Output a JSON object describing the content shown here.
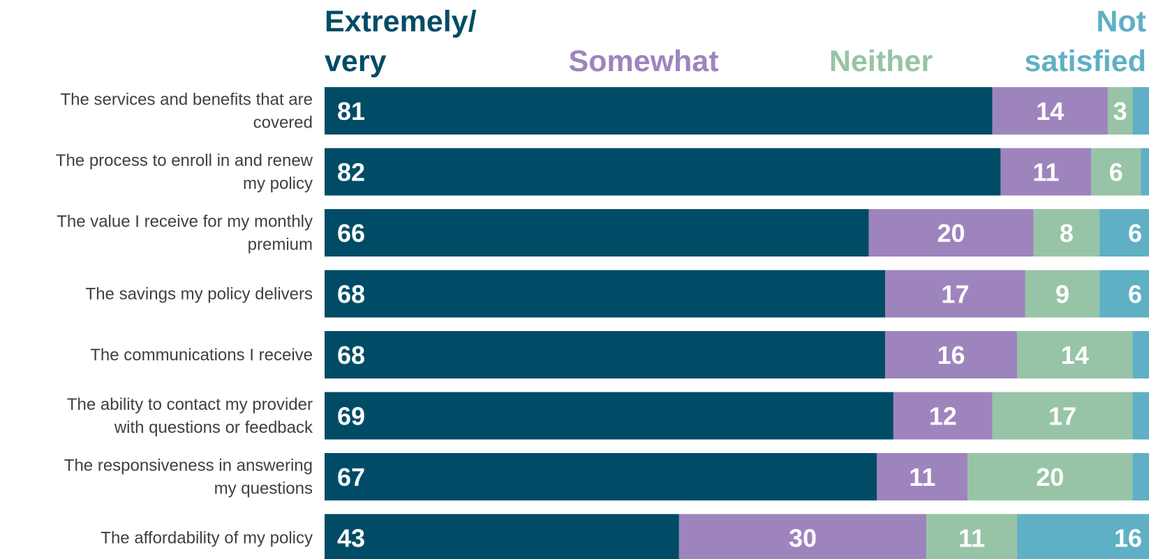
{
  "chart_data": {
    "type": "bar",
    "orientation": "horizontal",
    "stacked": true,
    "grid": false,
    "legend_position": "top",
    "xlim": [
      0,
      100
    ],
    "categories": [
      [
        "The services and benefits that are",
        "covered"
      ],
      [
        "The process to enroll in and renew",
        "my policy"
      ],
      [
        "The value I receive for my monthly",
        "premium"
      ],
      [
        "The savings my policy delivers"
      ],
      [
        "The communications I receive"
      ],
      [
        "The ability to contact my provider",
        "with questions or feedback"
      ],
      [
        "The responsiveness in answering",
        "my questions"
      ],
      [
        "The affordability of my policy"
      ]
    ],
    "series": [
      {
        "name": [
          "Extremely/",
          "very"
        ],
        "color": "#004c66",
        "values": [
          81,
          82,
          66,
          68,
          68,
          69,
          67,
          43
        ],
        "labels": [
          "81",
          "82",
          "66",
          "68",
          "68",
          "69",
          "67",
          "43"
        ]
      },
      {
        "name": [
          "Somewhat"
        ],
        "color": "#9e84bd",
        "values": [
          14,
          11,
          20,
          17,
          16,
          12,
          11,
          30
        ],
        "labels": [
          "14",
          "11",
          "20",
          "17",
          "16",
          "12",
          "11",
          "30"
        ]
      },
      {
        "name": [
          "Neither"
        ],
        "color": "#97c4a6",
        "values": [
          3,
          6,
          8,
          9,
          14,
          17,
          20,
          11
        ],
        "labels": [
          "3",
          "6",
          "8",
          "9",
          "14",
          "17",
          "20",
          "11"
        ]
      },
      {
        "name": [
          "Not",
          "satisfied"
        ],
        "color": "#5fb0c4",
        "values": [
          2,
          1,
          6,
          6,
          3,
          2,
          2,
          16
        ],
        "labels": [
          "",
          "",
          "6",
          "6",
          "",
          "",
          "",
          "16"
        ]
      }
    ]
  }
}
